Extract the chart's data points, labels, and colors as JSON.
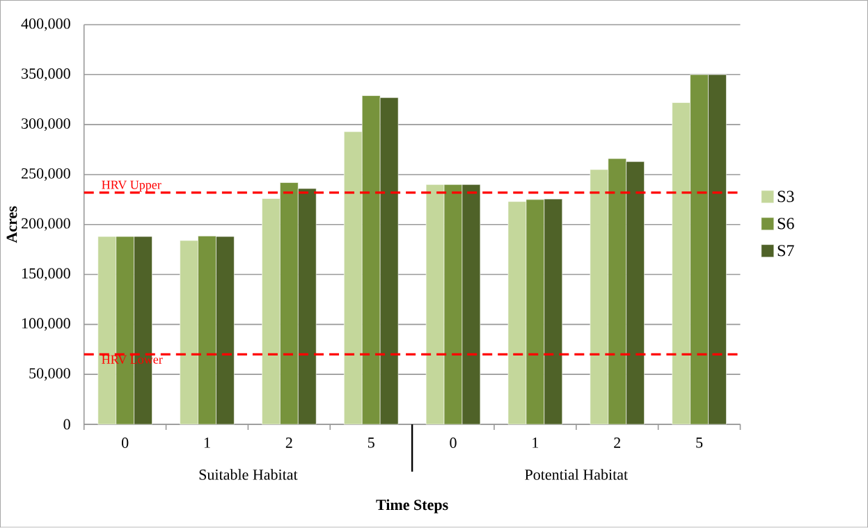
{
  "chart_data": {
    "type": "bar",
    "xlabel": "Time Steps",
    "ylabel": "Acres",
    "categories": [
      "0",
      "1",
      "2",
      "5",
      "0",
      "1",
      "2",
      "5"
    ],
    "series": [
      {
        "name": "S3",
        "color": "#c4d79b",
        "values": [
          188000,
          184000,
          226000,
          293000,
          240000,
          223000,
          255000,
          322000
        ]
      },
      {
        "name": "S6",
        "color": "#77933c",
        "values": [
          188000,
          188500,
          242000,
          329000,
          240000,
          225000,
          266000,
          350000
        ]
      },
      {
        "name": "S7",
        "color": "#4f6228",
        "values": [
          188000,
          188000,
          236000,
          327000,
          240000,
          225500,
          263000,
          350000
        ]
      }
    ],
    "ylim": [
      0,
      400000
    ],
    "yticks": [
      {
        "value": 0,
        "label": "0"
      },
      {
        "value": 50000,
        "label": "50,000"
      },
      {
        "value": 100000,
        "label": "100,000"
      },
      {
        "value": 150000,
        "label": "150,000"
      },
      {
        "value": 200000,
        "label": "200,000"
      },
      {
        "value": 250000,
        "label": "250,000"
      },
      {
        "value": 300000,
        "label": "300,000"
      },
      {
        "value": 350000,
        "label": "350,000"
      },
      {
        "value": 400000,
        "label": "400,000"
      }
    ],
    "ref_lines": [
      {
        "axis": "y",
        "value": 232000,
        "label": "HRV Upper",
        "color": "#ff0000",
        "line_style": "dashed"
      },
      {
        "axis": "y",
        "value": 70000,
        "label": "HRV Lower",
        "color": "#ff0000",
        "line_style": "dashed"
      }
    ],
    "annotations": [
      "Suitable Habitat",
      "Potential Habitat"
    ],
    "grid": "y",
    "legend": "right"
  }
}
